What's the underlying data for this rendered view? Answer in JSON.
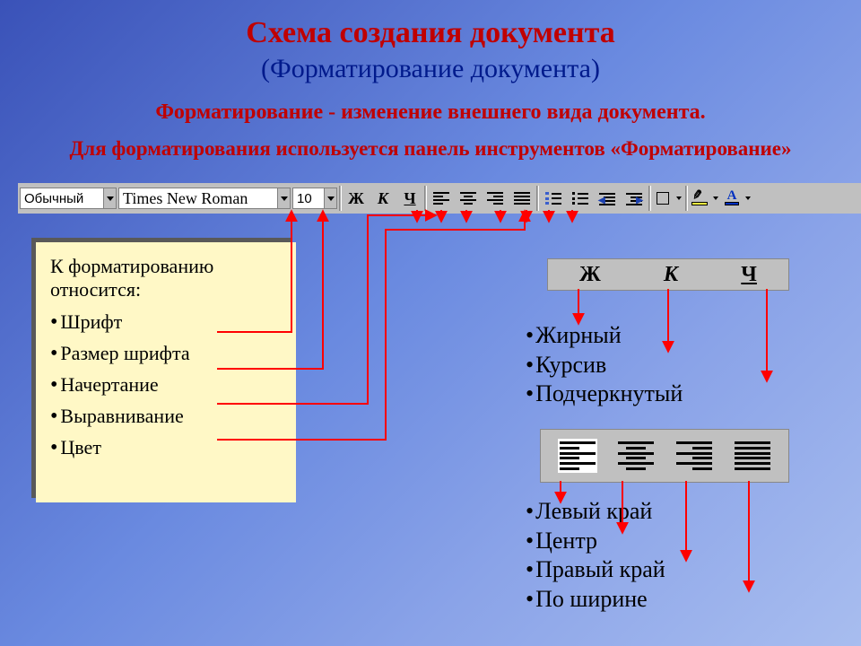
{
  "colors": {
    "title": "#c00000",
    "subtitle": "#001a8c",
    "arrow": "#ff0000",
    "panel_bg": "#fff8c6",
    "toolbar_bg": "#c0c0c0"
  },
  "title": "Схема создания документа",
  "subtitle": "(Форматирование документа)",
  "desc1": "Форматирование - изменение внешнего вида документа.",
  "desc2": "Для форматирования используется панель инструментов «Форматирование»",
  "toolbar": {
    "style_value": "Обычный",
    "font_value": "Times New Roman",
    "size_value": "10",
    "bold_glyph": "Ж",
    "italic_glyph": "К",
    "underline_glyph": "Ч",
    "fontcolor_glyph": "А"
  },
  "infobox": {
    "header": "К форматированию относится:",
    "items": [
      "Шрифт",
      "Размер шрифта",
      "Начертание",
      "Выравнивание",
      "Цвет"
    ]
  },
  "zh_panel": {
    "bold": "Ж",
    "italic": "К",
    "underline": "Ч"
  },
  "bullets_style": [
    "Жирный",
    "Курсив",
    "Подчеркнутый"
  ],
  "bullets_align": [
    "Левый край",
    "Центр",
    "Правый край",
    "По ширине"
  ],
  "arrows": {
    "color": "#ff0000",
    "width": 2,
    "paths": [
      "M 242 370 L 325 370 L 325 236",
      "M 242 411 L 360 411 L 360 236",
      "M 242 450 L 410 450 L 410 240 L 485 240",
      "M 242 490 L 430 490 L 430 256 L 585 256 L 585 236",
      "M 465 234 L 465 246",
      "M 492 234 L 492 246",
      "M 520 234 L 520 246",
      "M 558 234 L 558 246",
      "M 587 234 L 587 246",
      "M 612 234 L 612 246",
      "M 638 234 L 638 246",
      "M 645 322 L 645 360",
      "M 745 322 L 745 391",
      "M 855 322 L 855 424",
      "M 625 536 L 625 559",
      "M 694 536 L 694 593",
      "M 765 536 L 765 624",
      "M 835 536 L 835 658"
    ]
  }
}
